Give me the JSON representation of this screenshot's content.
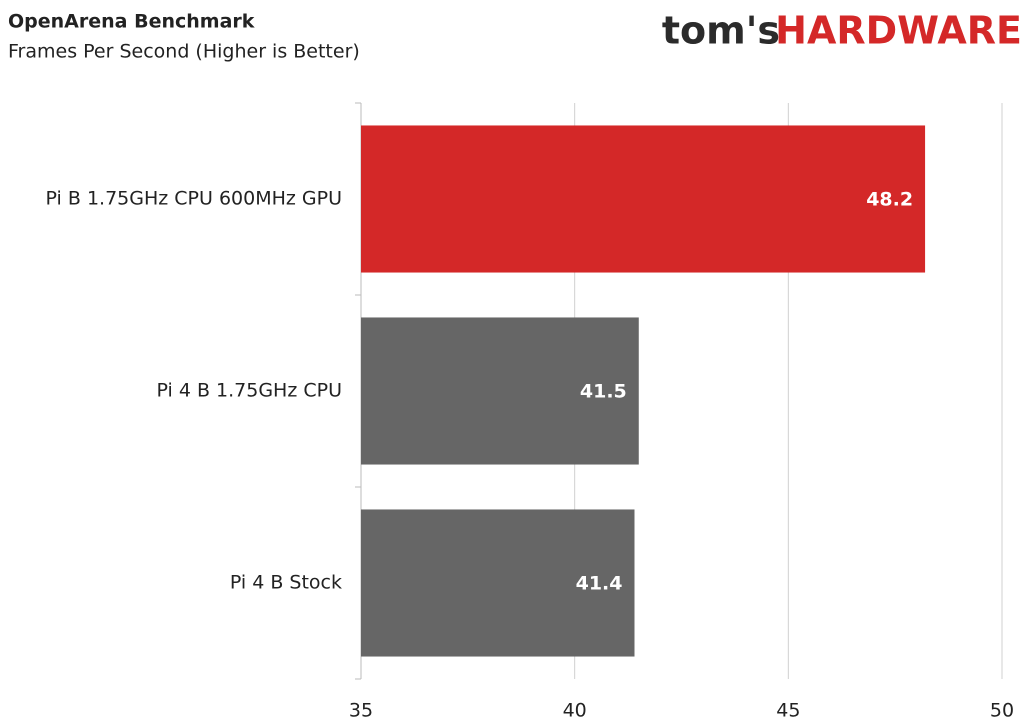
{
  "logo": [
    "tom's",
    "HARDWARE"
  ],
  "chart_data": {
    "type": "hbar",
    "title": "OpenArena Benchmark",
    "subtitle": "Frames Per Second (Higher is Better)",
    "categories": [
      "Pi B 1.75GHz CPU 600MHz GPU",
      "Pi 4 B 1.75GHz CPU",
      "Pi 4 B Stock"
    ],
    "values": [
      48.2,
      41.5,
      41.4
    ],
    "colors": [
      "#d42828",
      "#666666",
      "#666666"
    ],
    "xlim": [
      35,
      50
    ],
    "xticks": [
      35,
      40,
      45,
      50
    ],
    "grid": true
  }
}
